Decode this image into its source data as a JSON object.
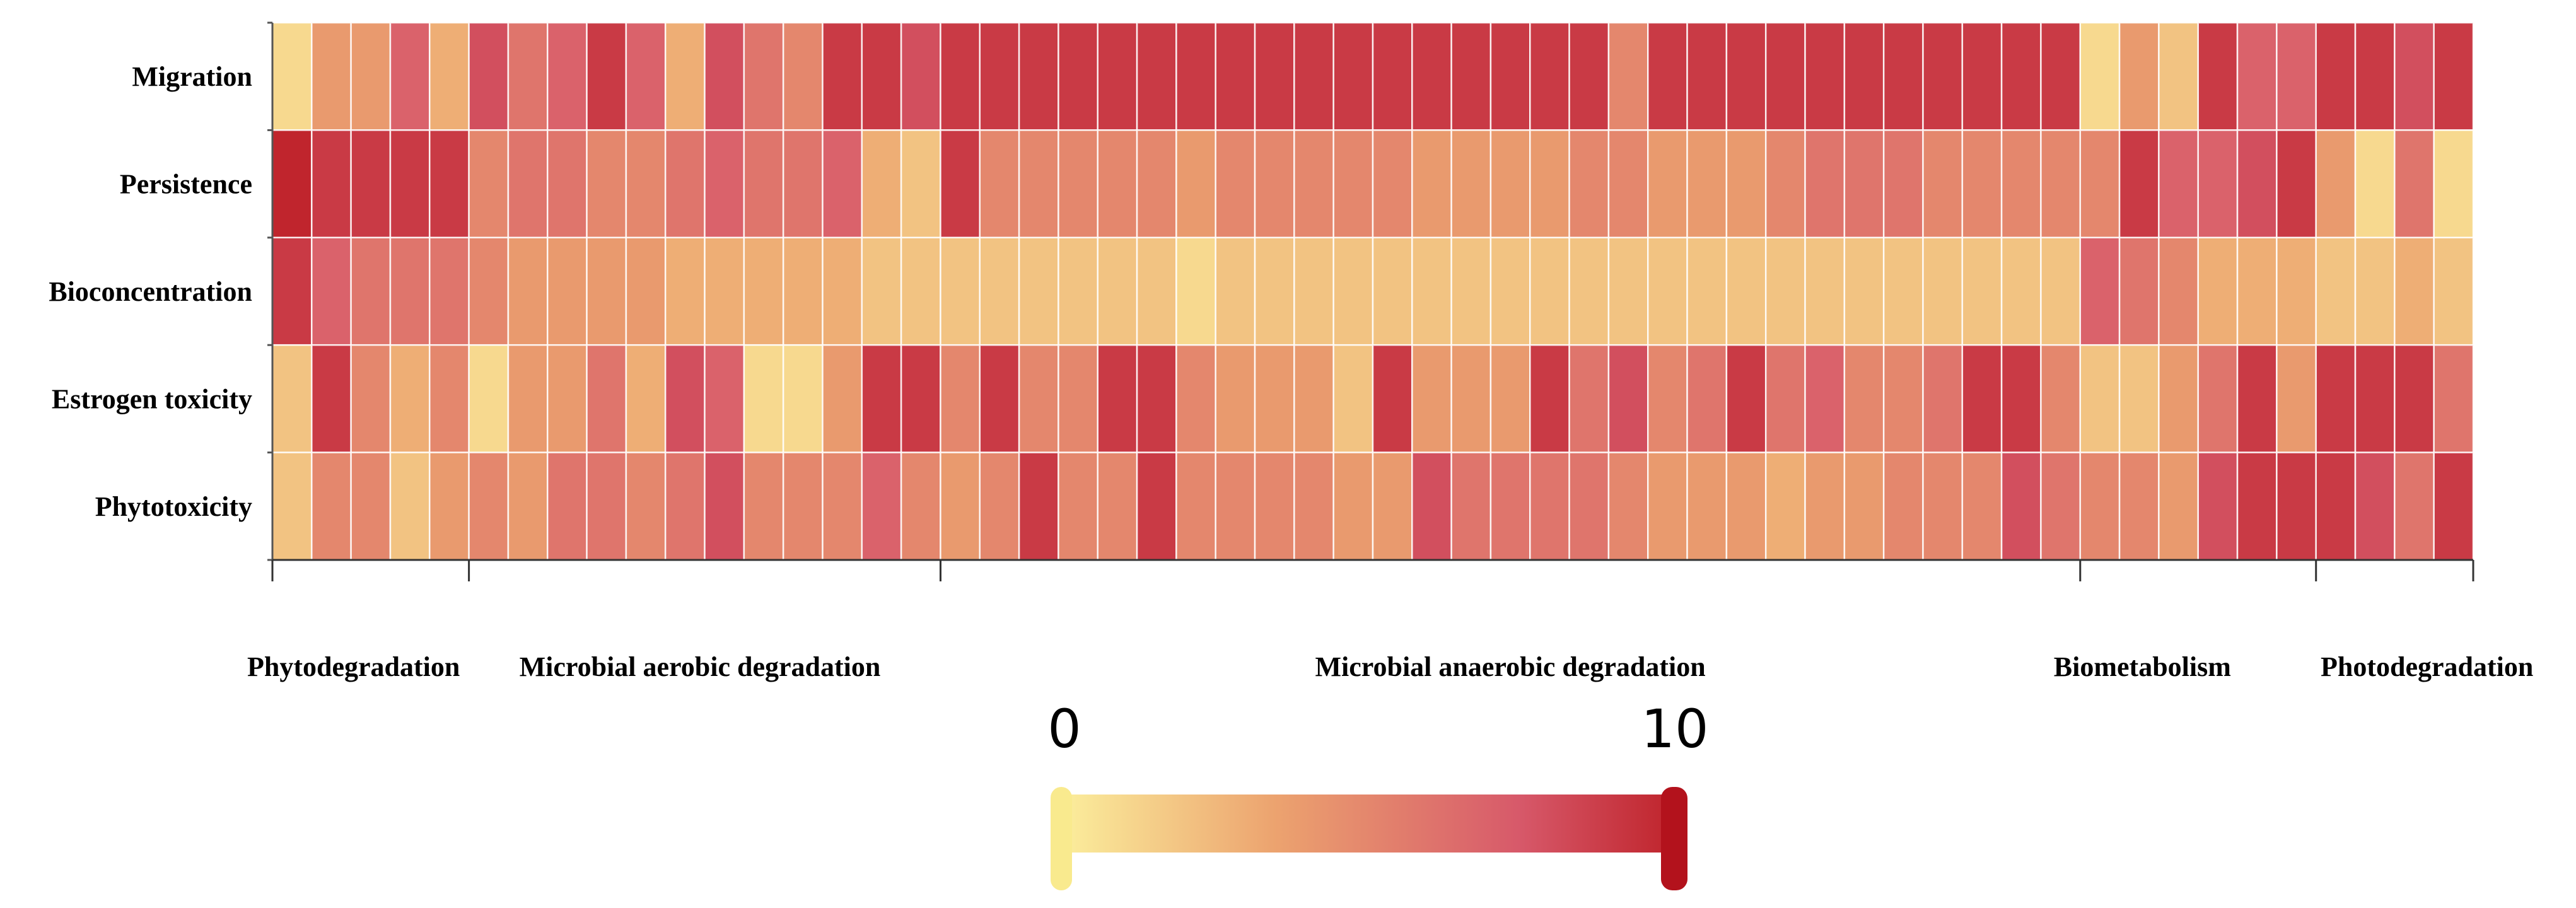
{
  "chart_data": {
    "type": "heatmap",
    "rows": [
      "Migration",
      "Persistence",
      "Bioconcentration",
      "Estrogen toxicity",
      "Phytotoxicity"
    ],
    "groups": [
      {
        "label": "Phytodegradation",
        "start": 0,
        "end": 5
      },
      {
        "label": "Microbial aerobic degradation",
        "start": 5,
        "end": 17
      },
      {
        "label": "Microbial anaerobic degradation",
        "start": 17,
        "end": 46
      },
      {
        "label": "Biometabolism",
        "start": 46,
        "end": 52
      },
      {
        "label": "Photodegradation",
        "start": 52,
        "end": 56
      }
    ],
    "n_columns": 56,
    "values": [
      [
        1,
        4,
        4,
        7,
        3,
        8,
        6,
        7,
        9,
        7,
        3,
        8,
        6,
        5,
        9,
        9,
        8,
        9,
        9,
        9,
        9,
        9,
        9,
        9,
        9,
        9,
        9,
        9,
        9,
        9,
        9,
        9,
        9,
        9,
        5,
        9,
        9,
        9,
        9,
        9,
        9,
        9,
        9,
        9,
        9,
        9,
        1,
        4,
        2,
        9,
        7,
        7,
        9,
        9,
        8,
        9
      ],
      [
        10,
        9,
        9,
        9,
        9,
        5,
        6,
        6,
        5,
        5,
        6,
        7,
        6,
        6,
        7,
        3,
        2,
        9,
        5,
        5,
        5,
        5,
        5,
        4,
        5,
        5,
        5,
        5,
        5,
        4,
        4,
        4,
        4,
        5,
        5,
        4,
        4,
        4,
        5,
        6,
        6,
        6,
        5,
        5,
        5,
        5,
        5,
        9,
        7,
        7,
        8,
        9,
        4,
        1,
        6,
        1
      ],
      [
        9,
        7,
        6,
        6,
        6,
        5,
        4,
        4,
        4,
        4,
        3,
        3,
        3,
        3,
        3,
        2,
        2,
        2,
        2,
        2,
        2,
        2,
        2,
        1,
        2,
        2,
        2,
        2,
        2,
        2,
        2,
        2,
        2,
        2,
        2,
        2,
        2,
        2,
        2,
        2,
        2,
        2,
        2,
        2,
        2,
        2,
        7,
        6,
        5,
        3,
        3,
        3,
        2,
        2,
        3,
        2
      ],
      [
        2,
        9,
        5,
        3,
        5,
        1,
        4,
        4,
        6,
        3,
        8,
        7,
        1,
        1,
        4,
        9,
        9,
        5,
        9,
        5,
        5,
        9,
        9,
        5,
        4,
        4,
        4,
        2,
        9,
        4,
        4,
        4,
        9,
        6,
        8,
        5,
        6,
        9,
        6,
        7,
        5,
        5,
        6,
        9,
        9,
        5,
        2,
        2,
        4,
        6,
        9,
        4,
        9,
        9,
        9,
        6
      ],
      [
        2,
        5,
        5,
        2,
        4,
        5,
        4,
        6,
        6,
        5,
        6,
        8,
        5,
        5,
        5,
        7,
        5,
        4,
        5,
        9,
        5,
        5,
        9,
        5,
        5,
        5,
        5,
        4,
        4,
        8,
        6,
        6,
        6,
        6,
        5,
        4,
        4,
        4,
        3,
        4,
        4,
        5,
        5,
        5,
        8,
        6,
        5,
        5,
        4,
        8,
        9,
        9,
        9,
        8,
        6,
        9
      ]
    ],
    "color_scale": {
      "min": 0,
      "max": 10,
      "min_label": "0",
      "max_label": "10",
      "low_color": "#f7e88a",
      "high_color": "#c4252e"
    }
  }
}
